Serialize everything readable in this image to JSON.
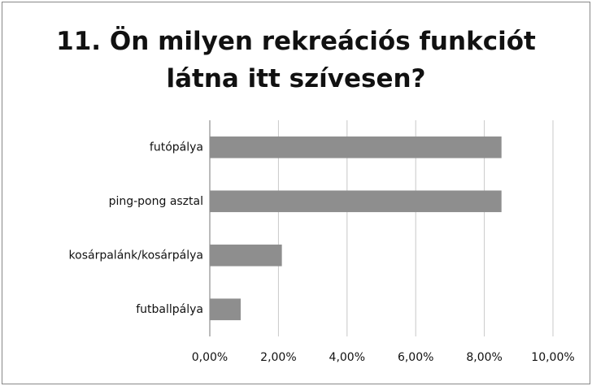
{
  "chart_data": {
    "type": "bar",
    "orientation": "horizontal",
    "title": "11. Ön milyen rekreációs funkciót látna itt szívesen?",
    "categories": [
      "futópálya",
      "ping-pong asztal",
      "kosárpalánk/kosárpálya",
      "futballpálya"
    ],
    "values": [
      8.5,
      8.5,
      2.1,
      0.9
    ],
    "color": "#8e8e8e",
    "xlim": [
      0,
      10
    ],
    "xticks": [
      {
        "value": 0,
        "label": "0,00%"
      },
      {
        "value": 2,
        "label": "2,00%"
      },
      {
        "value": 4,
        "label": "4,00%"
      },
      {
        "value": 6,
        "label": "6,00%"
      },
      {
        "value": 8,
        "label": "8,00%"
      },
      {
        "value": 10,
        "label": "10,00%"
      }
    ],
    "grid": true
  }
}
